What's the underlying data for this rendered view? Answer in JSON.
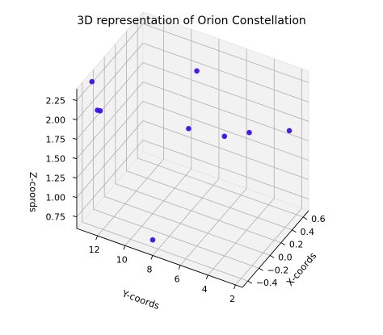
{
  "chart_data": {
    "type": "scatter",
    "projection": "3d",
    "title": "3D representation of Orion Constellation",
    "xlabel": "X-coords",
    "ylabel": "Y-coords",
    "zlabel": "Z-coords",
    "grid": true,
    "marker_color": "#3b10e6",
    "pane_color": "#f2f2f2",
    "xlim": [
      -0.5,
      0.7
    ],
    "ylim": [
      1.5,
      13.5
    ],
    "zlim": [
      0.6,
      2.4
    ],
    "x_ticks": [
      "−0.4",
      "−0.2",
      "0.0",
      "0.2",
      "0.4",
      "0.6"
    ],
    "y_ticks": [
      "12",
      "10",
      "8",
      "6",
      "4",
      "2"
    ],
    "z_ticks": [
      "0.75",
      "1.00",
      "1.25",
      "1.50",
      "1.75",
      "2.00",
      "2.25"
    ],
    "points": [
      {
        "x": -0.35,
        "y": 13.0,
        "z": 2.4
      },
      {
        "x": -0.25,
        "y": 13.0,
        "z": 1.95
      },
      {
        "x": -0.2,
        "y": 13.0,
        "z": 1.9
      },
      {
        "x": 0.55,
        "y": 9.0,
        "z": 2.05
      },
      {
        "x": 0.15,
        "y": 8.0,
        "z": 1.7
      },
      {
        "x": 0.35,
        "y": 6.2,
        "z": 1.55
      },
      {
        "x": 0.5,
        "y": 5.0,
        "z": 1.55
      },
      {
        "x": 0.6,
        "y": 2.5,
        "z": 1.65
      },
      {
        "x": -0.5,
        "y": 8.0,
        "z": 0.8
      }
    ]
  }
}
